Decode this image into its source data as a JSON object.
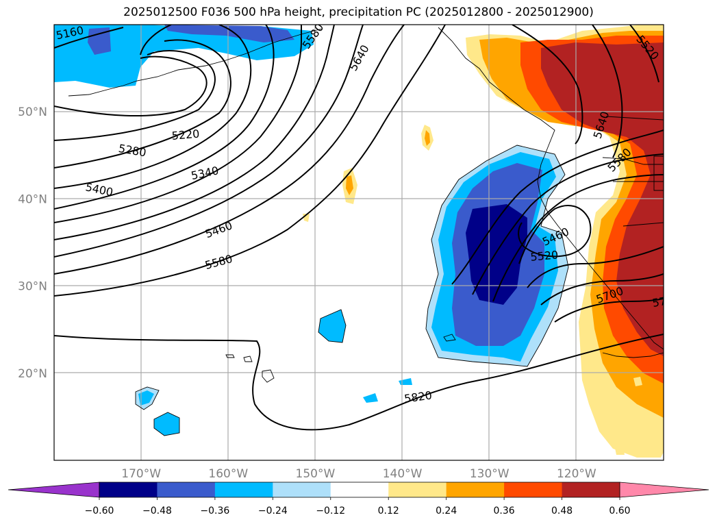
{
  "title": "2025012500 F036 500 hPa height, precipitation PC (2025012800 - 2025012900)",
  "map": {
    "lon_range": [
      -180,
      -110
    ],
    "lat_range": [
      10,
      60
    ],
    "lat_ticks": [
      {
        "value": 20,
        "label": "20°N"
      },
      {
        "value": 30,
        "label": "30°N"
      },
      {
        "value": 40,
        "label": "40°N"
      },
      {
        "value": 50,
        "label": "50°N"
      }
    ],
    "lon_ticks": [
      {
        "value": -170,
        "label": "170°W"
      },
      {
        "value": -160,
        "label": "160°W"
      },
      {
        "value": -150,
        "label": "150°W"
      },
      {
        "value": -140,
        "label": "140°W"
      },
      {
        "value": -130,
        "label": "130°W"
      },
      {
        "value": -120,
        "label": "120°W"
      }
    ],
    "grid": true,
    "contour_color": "#000000",
    "coastline_color": "#000000"
  },
  "contour_labels": [
    {
      "text": "5160",
      "lon": -178.2,
      "lat": 59.1,
      "angle": -12
    },
    {
      "text": "5580",
      "lon": -150.3,
      "lat": 58.7,
      "angle": -55
    },
    {
      "text": "5640",
      "lon": -145.0,
      "lat": 56.2,
      "angle": -60
    },
    {
      "text": "5520",
      "lon": -111.8,
      "lat": 57.4,
      "angle": 50
    },
    {
      "text": "5220",
      "lon": -164.9,
      "lat": 47.4,
      "angle": -5
    },
    {
      "text": "5280",
      "lon": -171.0,
      "lat": 45.6,
      "angle": 10
    },
    {
      "text": "5340",
      "lon": -162.7,
      "lat": 43.0,
      "angle": -12
    },
    {
      "text": "5400",
      "lon": -174.8,
      "lat": 41.1,
      "angle": 12
    },
    {
      "text": "5460",
      "lon": -161.1,
      "lat": 36.5,
      "angle": -20
    },
    {
      "text": "5580",
      "lon": -161.1,
      "lat": 32.8,
      "angle": -15
    },
    {
      "text": "5820",
      "lon": -138.2,
      "lat": 17.3,
      "angle": -8
    },
    {
      "text": "5640",
      "lon": -117.2,
      "lat": 48.5,
      "angle": -72
    },
    {
      "text": "5580",
      "lon": -115.1,
      "lat": 44.5,
      "angle": -45
    },
    {
      "text": "5460",
      "lon": -122.4,
      "lat": 35.7,
      "angle": -25
    },
    {
      "text": "5520",
      "lon": -123.7,
      "lat": 33.5,
      "angle": -5
    },
    {
      "text": "5700",
      "lon": -116.2,
      "lat": 29.0,
      "angle": -20
    },
    {
      "text": "57",
      "lon": -110.5,
      "lat": 28.2,
      "angle": -10
    }
  ],
  "colorbar": {
    "levels": [
      -0.6,
      -0.48,
      -0.36,
      -0.24,
      -0.12,
      0.12,
      0.24,
      0.36,
      0.48,
      0.6
    ],
    "tick_labels": [
      "−0.60",
      "−0.48",
      "−0.36",
      "−0.24",
      "−0.12",
      "0.12",
      "0.24",
      "0.36",
      "0.48",
      "0.60"
    ],
    "under_color": "#9933cc",
    "over_color": "#ff88aa",
    "colors": [
      "#000088",
      "#3a5bcc",
      "#00bbff",
      "#aee0fa",
      "#ffffff",
      "#ffe88a",
      "#ffa500",
      "#ff4a00",
      "#b22222"
    ]
  }
}
